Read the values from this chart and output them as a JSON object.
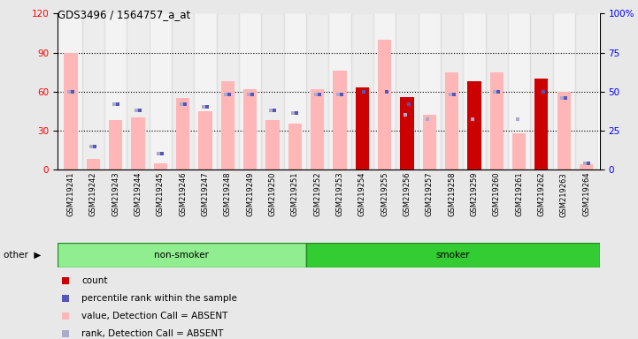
{
  "title": "GDS3496 / 1564757_a_at",
  "samples": [
    "GSM219241",
    "GSM219242",
    "GSM219243",
    "GSM219244",
    "GSM219245",
    "GSM219246",
    "GSM219247",
    "GSM219248",
    "GSM219249",
    "GSM219250",
    "GSM219251",
    "GSM219252",
    "GSM219253",
    "GSM219254",
    "GSM219255",
    "GSM219256",
    "GSM219257",
    "GSM219258",
    "GSM219259",
    "GSM219260",
    "GSM219261",
    "GSM219262",
    "GSM219263",
    "GSM219264"
  ],
  "pink_bars": [
    90,
    8,
    38,
    40,
    5,
    55,
    45,
    68,
    62,
    38,
    35,
    62,
    76,
    0,
    100,
    0,
    42,
    75,
    0,
    75,
    28,
    0,
    60,
    4
  ],
  "red_bars": [
    0,
    0,
    0,
    0,
    0,
    0,
    0,
    0,
    0,
    0,
    0,
    0,
    0,
    63,
    0,
    56,
    0,
    0,
    68,
    0,
    0,
    70,
    0,
    0
  ],
  "blue_marks": [
    50,
    15,
    42,
    38,
    10,
    42,
    40,
    48,
    48,
    38,
    36,
    48,
    48,
    50,
    50,
    42,
    0,
    48,
    0,
    50,
    0,
    50,
    46,
    4
  ],
  "light_blue_marks": [
    50,
    15,
    42,
    38,
    10,
    42,
    40,
    48,
    48,
    38,
    36,
    48,
    48,
    0,
    0,
    35,
    32,
    48,
    32,
    50,
    32,
    0,
    46,
    4
  ],
  "non_smoker_count": 11,
  "smoker_count": 13,
  "ylim_left": [
    0,
    120
  ],
  "ylim_right": [
    0,
    100
  ],
  "yticks_left": [
    0,
    30,
    60,
    90,
    120
  ],
  "yticks_right": [
    0,
    25,
    50,
    75,
    100
  ],
  "bg_color": "#e8e8e8",
  "plot_bg": "#ffffff",
  "pink_color": "#ffb6b6",
  "red_color": "#cc0000",
  "blue_color": "#5555bb",
  "light_blue_color": "#aaaacc",
  "non_smoker_color": "#90ee90",
  "smoker_color": "#33cc33",
  "other_label": "other",
  "non_smoker_label": "non-smoker",
  "smoker_label": "smoker",
  "legend_items": [
    {
      "label": "count",
      "color": "#cc0000"
    },
    {
      "label": "percentile rank within the sample",
      "color": "#5555bb"
    },
    {
      "label": "value, Detection Call = ABSENT",
      "color": "#ffb6b6"
    },
    {
      "label": "rank, Detection Call = ABSENT",
      "color": "#aaaacc"
    }
  ]
}
